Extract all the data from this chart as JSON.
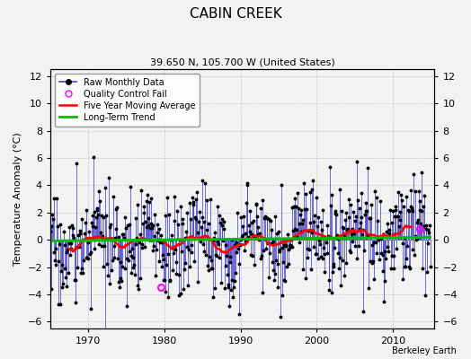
{
  "title": "CABIN CREEK",
  "subtitle": "39.650 N, 105.700 W (United States)",
  "ylabel": "Temperature Anomaly (°C)",
  "credit": "Berkeley Earth",
  "ylim": [
    -6.5,
    12.5
  ],
  "yticks": [
    -6,
    -4,
    -2,
    0,
    2,
    4,
    6,
    8,
    10,
    12
  ],
  "xlim": [
    1965,
    2015.5
  ],
  "xticks": [
    1970,
    1980,
    1990,
    2000,
    2010
  ],
  "start_year": 1965,
  "end_year": 2014,
  "raw_color": "#4444CC",
  "ma_color": "#FF0000",
  "trend_color": "#00BB00",
  "qc_color": "#FF00FF",
  "background_color": "#F2F2F2",
  "grid_color": "#BBBBBB",
  "qc_points": [
    [
      1979.5,
      -3.5
    ],
    [
      2013.5,
      0.8
    ]
  ],
  "noise_scale": 1.9,
  "oscillation_amp1": 0.9,
  "oscillation_period1": 7.0,
  "oscillation_amp2": 0.4,
  "oscillation_period2": 3.3,
  "trend_slope": 0.018
}
